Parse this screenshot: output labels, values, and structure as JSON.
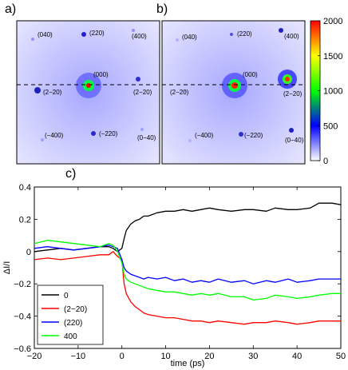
{
  "panels": {
    "a": {
      "letter": "a)",
      "peaks": [
        {
          "label": "(040)",
          "x": 0,
          "y": 2,
          "intensity": 0.1
        },
        {
          "label": "(220)",
          "x": 1,
          "y": 1,
          "intensity": 0.35
        },
        {
          "label": "(400)",
          "x": 2,
          "y": 0,
          "intensity": 0.1
        },
        {
          "label": "(000)",
          "x": 0,
          "y": 0,
          "intensity": 1.0
        },
        {
          "label": "(2−20)",
          "x": 1,
          "y": -1,
          "intensity": 0.3
        },
        {
          "label": "(2−20)",
          "x": -1,
          "y": 1,
          "intensity": 0.4
        },
        {
          "label": "(−400)",
          "x": -2,
          "y": 0,
          "intensity": 0.08
        },
        {
          "label": "(−220)",
          "x": -1,
          "y": -1,
          "intensity": 0.25
        },
        {
          "label": "(0−40)",
          "x": 0,
          "y": -2,
          "intensity": 0.08
        }
      ]
    },
    "b": {
      "letter": "b)",
      "peaks": [
        {
          "label": "(040)",
          "x": 0,
          "y": 2,
          "intensity": 0.05
        },
        {
          "label": "(220)",
          "x": 1,
          "y": 1,
          "intensity": 0.2
        },
        {
          "label": "(400)",
          "x": 2,
          "y": 0,
          "intensity": 0.3
        },
        {
          "label": "(000)",
          "x": 0,
          "y": 0,
          "intensity": 1.0
        },
        {
          "label": "(2−20)",
          "x": 1,
          "y": -1,
          "intensity": 0.95
        },
        {
          "label": "(2−20)",
          "x": -1,
          "y": 1,
          "intensity": 0.1
        },
        {
          "label": "(−400)",
          "x": -2,
          "y": 0,
          "intensity": 0.05
        },
        {
          "label": "(−220)",
          "x": -1,
          "y": -1,
          "intensity": 0.25
        },
        {
          "label": "(0−40)",
          "x": 0,
          "y": -2,
          "intensity": 0.35
        }
      ]
    },
    "c": {
      "letter": "c)"
    }
  },
  "colorbar": {
    "ticks": [
      0,
      500,
      1000,
      1500,
      2000
    ],
    "range": [
      0,
      2000
    ],
    "colors": [
      "#ffffff",
      "#0000ff",
      "#00ff00",
      "#ffff00",
      "#ff0000"
    ]
  },
  "chart_data": {
    "type": "line",
    "xlabel": "time (ps)",
    "ylabel": "ΔI/I",
    "xlim": [
      -20,
      50
    ],
    "ylim": [
      -0.6,
      0.4
    ],
    "xticks": [
      -20,
      -10,
      0,
      10,
      20,
      30,
      40,
      50
    ],
    "yticks": [
      -0.6,
      -0.4,
      -0.2,
      0,
      0.2,
      0.4
    ],
    "legend_position": "bottom-left",
    "series": [
      {
        "name": "0",
        "color": "#000000",
        "x": [
          -20,
          -17,
          -14,
          -11,
          -8,
          -5,
          -3,
          -2,
          -1,
          0,
          0.5,
          1,
          2,
          3,
          4,
          5,
          6,
          8,
          10,
          12,
          14,
          16,
          18,
          20,
          22,
          25,
          28,
          30,
          33,
          35,
          38,
          40,
          43,
          45,
          48,
          50
        ],
        "y": [
          0.0,
          0.01,
          0.02,
          0.01,
          0.02,
          0.03,
          0.03,
          0.02,
          0.0,
          0.02,
          0.08,
          0.13,
          0.17,
          0.19,
          0.2,
          0.22,
          0.22,
          0.24,
          0.25,
          0.25,
          0.26,
          0.25,
          0.26,
          0.27,
          0.26,
          0.25,
          0.26,
          0.26,
          0.25,
          0.27,
          0.26,
          0.26,
          0.27,
          0.3,
          0.3,
          0.29
        ]
      },
      {
        "name": "(2−20)",
        "color": "#ff0000",
        "x": [
          -20,
          -17,
          -14,
          -11,
          -8,
          -5,
          -3,
          -2,
          -1,
          0,
          0.5,
          1,
          2,
          3,
          4,
          5,
          6,
          8,
          10,
          12,
          14,
          16,
          18,
          20,
          22,
          25,
          28,
          30,
          33,
          35,
          38,
          40,
          43,
          45,
          48,
          50
        ],
        "y": [
          -0.05,
          -0.04,
          -0.05,
          -0.04,
          -0.03,
          -0.02,
          -0.02,
          0.0,
          -0.03,
          -0.05,
          -0.2,
          -0.26,
          -0.31,
          -0.34,
          -0.36,
          -0.38,
          -0.39,
          -0.4,
          -0.41,
          -0.41,
          -0.42,
          -0.43,
          -0.43,
          -0.44,
          -0.43,
          -0.44,
          -0.45,
          -0.44,
          -0.44,
          -0.43,
          -0.44,
          -0.45,
          -0.44,
          -0.43,
          -0.43,
          -0.43
        ]
      },
      {
        "name": "(220)",
        "color": "#0000ff",
        "x": [
          -20,
          -17,
          -14,
          -11,
          -8,
          -5,
          -3,
          -2,
          -1,
          0,
          0.5,
          1,
          2,
          3,
          4,
          5,
          6,
          8,
          10,
          12,
          14,
          16,
          18,
          20,
          22,
          25,
          28,
          30,
          33,
          35,
          38,
          40,
          43,
          45,
          48,
          50
        ],
        "y": [
          0.02,
          0.03,
          0.02,
          0.01,
          0.02,
          0.03,
          0.04,
          0.03,
          0.02,
          -0.05,
          -0.1,
          -0.12,
          -0.14,
          -0.15,
          -0.16,
          -0.17,
          -0.16,
          -0.17,
          -0.16,
          -0.18,
          -0.17,
          -0.19,
          -0.18,
          -0.19,
          -0.17,
          -0.19,
          -0.18,
          -0.2,
          -0.18,
          -0.19,
          -0.17,
          -0.19,
          -0.18,
          -0.17,
          -0.17,
          -0.17
        ]
      },
      {
        "name": "400",
        "color": "#00ff00",
        "x": [
          -20,
          -17,
          -14,
          -11,
          -8,
          -5,
          -3,
          -2,
          -1,
          0,
          0.5,
          1,
          2,
          3,
          4,
          5,
          6,
          8,
          10,
          12,
          14,
          16,
          18,
          20,
          22,
          25,
          28,
          30,
          33,
          35,
          38,
          40,
          43,
          45,
          48,
          50
        ],
        "y": [
          0.05,
          0.07,
          0.06,
          0.05,
          0.04,
          0.03,
          0.05,
          0.04,
          0.0,
          -0.07,
          -0.14,
          -0.17,
          -0.19,
          -0.2,
          -0.21,
          -0.22,
          -0.23,
          -0.24,
          -0.25,
          -0.25,
          -0.26,
          -0.27,
          -0.26,
          -0.27,
          -0.26,
          -0.28,
          -0.28,
          -0.3,
          -0.29,
          -0.27,
          -0.28,
          -0.29,
          -0.28,
          -0.27,
          -0.26,
          -0.26
        ]
      }
    ]
  }
}
